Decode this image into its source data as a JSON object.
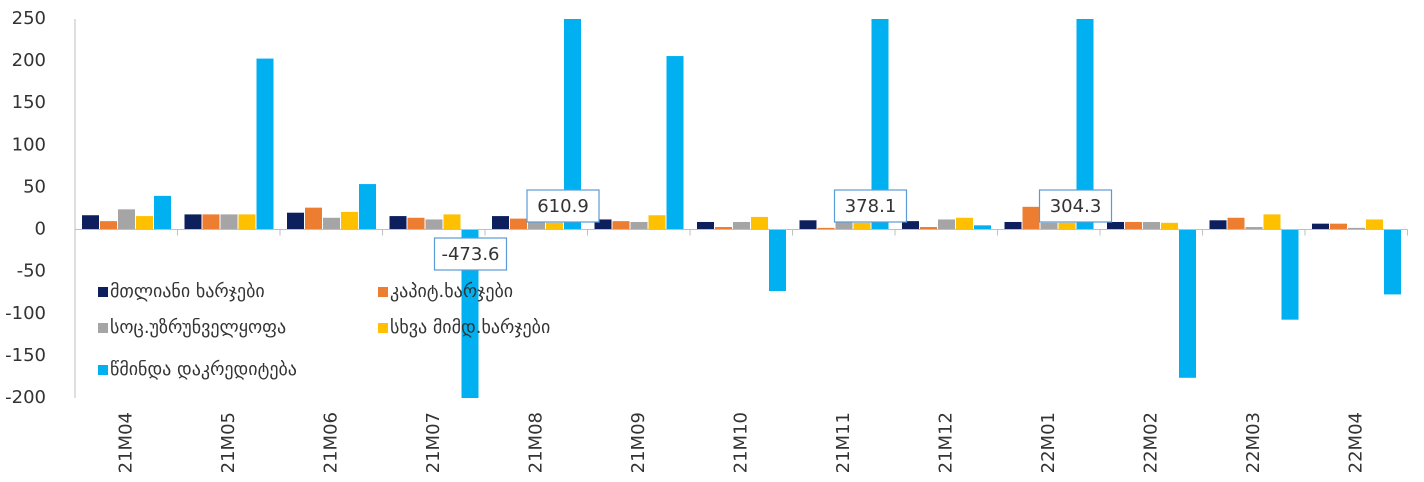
{
  "chart_data": {
    "type": "bar",
    "categories": [
      "21M04",
      "21M05",
      "21M06",
      "21M07",
      "21M08",
      "21M09",
      "21M10",
      "21M11",
      "21M12",
      "22M01",
      "22M02",
      "22M03",
      "22M04"
    ],
    "series": [
      {
        "name": "მთლიანი ხარჯები",
        "color": "#0d1f5c",
        "values": [
          17,
          18,
          20,
          16,
          16,
          12,
          9,
          11,
          10,
          9,
          9,
          11,
          7
        ]
      },
      {
        "name": "კაპიტ.ხარჯები",
        "color": "#ed7d31",
        "values": [
          10,
          18,
          26,
          14,
          13,
          10,
          3,
          2,
          3,
          27,
          9,
          14,
          7
        ]
      },
      {
        "name": "სოც.უზრუნველყოფა",
        "color": "#a5a5a5",
        "values": [
          24,
          18,
          14,
          12,
          11,
          9,
          9,
          9,
          12,
          8,
          9,
          3,
          2
        ]
      },
      {
        "name": "სხვა მიმდ.ხარჯები",
        "color": "#ffc000",
        "values": [
          16,
          18,
          21,
          18,
          8,
          17,
          15,
          8,
          14,
          8,
          8,
          18,
          12
        ]
      },
      {
        "name": "წმინდა დაკრედიტება",
        "color": "#00b0f0",
        "values": [
          40,
          203,
          54,
          -473.6,
          610.9,
          206,
          -73,
          378.1,
          5,
          304.3,
          -176,
          -107,
          -77
        ],
        "value_labels": [
          null,
          null,
          null,
          "-473.6",
          "610.9",
          null,
          null,
          "378.1",
          null,
          "304.3",
          null,
          null,
          null
        ]
      }
    ],
    "ylim": [
      -200,
      250
    ],
    "yticks": [
      -200,
      -150,
      -100,
      -50,
      0,
      50,
      100,
      150,
      200,
      250
    ],
    "legend": "lower left"
  }
}
